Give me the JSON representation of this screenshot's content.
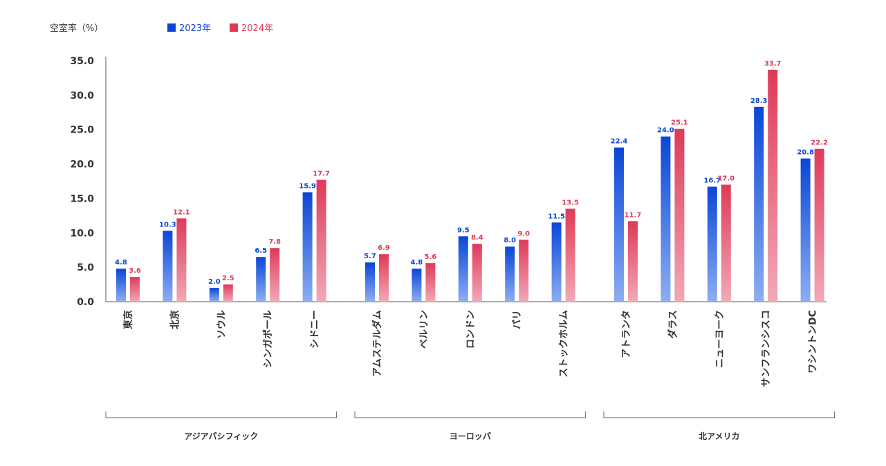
{
  "chart_data": {
    "type": "bar",
    "ylabel": "空室率（%）",
    "ylim": [
      0,
      35
    ],
    "yticks": [
      "0.0",
      "5.0",
      "10.0",
      "15.0",
      "20.0",
      "25.0",
      "30.0",
      "35.0"
    ],
    "legend_position": "top-left",
    "grid": false,
    "series": [
      {
        "name": "2023年",
        "color": "#0a46d8",
        "color_light": "#8caef2",
        "values": [
          4.8,
          10.3,
          2.0,
          6.5,
          15.9,
          5.7,
          4.8,
          9.5,
          8.0,
          11.5,
          22.4,
          24.0,
          16.7,
          28.3,
          20.8
        ]
      },
      {
        "name": "2024年",
        "color": "#de3a58",
        "color_light": "#f2a9b6",
        "values": [
          3.6,
          12.1,
          2.5,
          7.8,
          17.7,
          6.9,
          5.6,
          8.4,
          9.0,
          13.5,
          11.7,
          25.1,
          17.0,
          33.7,
          22.2
        ]
      }
    ],
    "groups": [
      {
        "name": "アジアパシフィック",
        "categories": [
          "東京",
          "北京",
          "ソウル",
          "シンガポール",
          "シドニー"
        ]
      },
      {
        "name": "ヨーロッパ",
        "categories": [
          "アムステルダム",
          "ベルリン",
          "ロンドン",
          "パリ",
          "ストックホルム"
        ]
      },
      {
        "name": "北アメリカ",
        "categories": [
          "アトランタ",
          "ダラス",
          "ニューヨーク",
          "サンフランシスコ",
          "ワシントンDC"
        ]
      }
    ]
  }
}
